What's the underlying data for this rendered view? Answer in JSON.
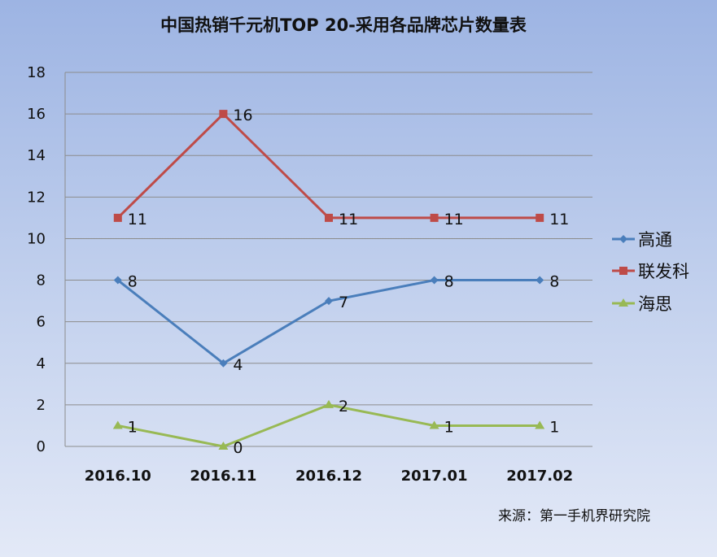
{
  "chart_data": {
    "type": "line",
    "title": "中国热销千元机TOP 20-采用各品牌芯片数量表",
    "categories": [
      "2016.10",
      "2016.11",
      "2016.12",
      "2017.01",
      "2017.02"
    ],
    "series": [
      {
        "name": "高通",
        "values": [
          8,
          4,
          7,
          8,
          8
        ],
        "color": "#4a7ebb",
        "marker": "diamond"
      },
      {
        "name": "联发科",
        "values": [
          11,
          16,
          11,
          11,
          11
        ],
        "color": "#be4b48",
        "marker": "square"
      },
      {
        "name": "海思",
        "values": [
          1,
          0,
          2,
          1,
          1
        ],
        "color": "#98b954",
        "marker": "triangle"
      }
    ],
    "yticks": [
      "0",
      "2",
      "4",
      "6",
      "8",
      "10",
      "12",
      "14",
      "16",
      "18"
    ],
    "ylim": [
      0,
      18
    ],
    "grid": true,
    "legend_position": "right",
    "source": "来源：第一手机界研究院"
  }
}
